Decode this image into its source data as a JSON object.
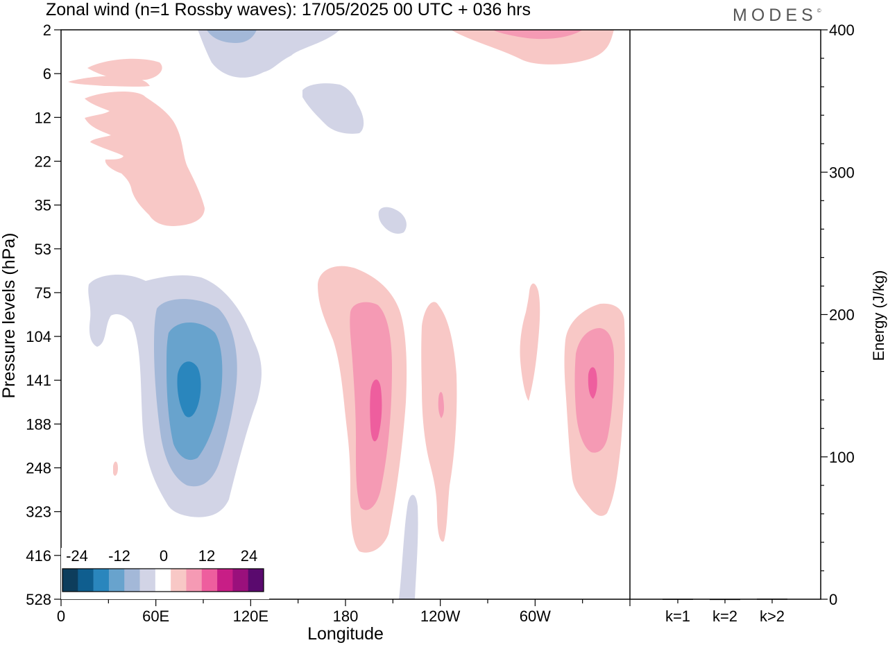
{
  "brand": "MODES",
  "chart_data": {
    "type": "contour",
    "title": "Zonal wind (n=1 Rossby waves):  17/05/2025  00 UTC  + 036 hrs",
    "xlabel": "Longitude",
    "ylabel": "Pressure levels (hPa)",
    "y2label": "Energy (J/kg)",
    "x_ticks": [
      "0",
      "60E",
      "120E",
      "180",
      "120W",
      "60W"
    ],
    "y_ticks": [
      "2",
      "6",
      "12",
      "22",
      "35",
      "53",
      "75",
      "104",
      "141",
      "188",
      "248",
      "323",
      "416",
      "528"
    ],
    "y2_ticks": [
      "0",
      "100",
      "200",
      "300",
      "400"
    ],
    "y2_range": [
      0,
      400
    ],
    "energy_bars": {
      "categories": [
        "k=1",
        "k=2",
        "k>2"
      ],
      "values": [
        0.3,
        0.2,
        0.4
      ]
    },
    "colorbar": {
      "labels": [
        "-24",
        "-12",
        "0",
        "12",
        "24"
      ],
      "colors": [
        "#0d3d5c",
        "#0f5e8f",
        "#2a86bd",
        "#68a3cd",
        "#a3b8d8",
        "#d2d4e6",
        "#ffffff",
        "#f8c8c6",
        "#f59ab4",
        "#ee5e9e",
        "#c81e86",
        "#9a107c",
        "#5a0a6e"
      ]
    },
    "features": [
      {
        "name": "negative-cell-60E-120E",
        "sign": "negative",
        "center_lon": 78,
        "center_level": "141",
        "peak": -18
      },
      {
        "name": "positive-cell-near-190",
        "sign": "positive",
        "center_lon": 192,
        "center_level": "188",
        "peak": 12
      },
      {
        "name": "positive-cell-120W",
        "sign": "positive",
        "center_lon": 236,
        "center_level": "141",
        "peak": 12
      },
      {
        "name": "positive-cell-east-of-60W",
        "sign": "positive",
        "center_lon": 326,
        "center_level": "141",
        "peak": 12
      },
      {
        "name": "positive-upper-west",
        "sign": "positive",
        "center_lon": 30,
        "center_level": "12",
        "peak": 6
      },
      {
        "name": "negative-upper-top",
        "sign": "negative",
        "center_lon": 90,
        "center_level": "2",
        "peak": -9
      }
    ]
  }
}
